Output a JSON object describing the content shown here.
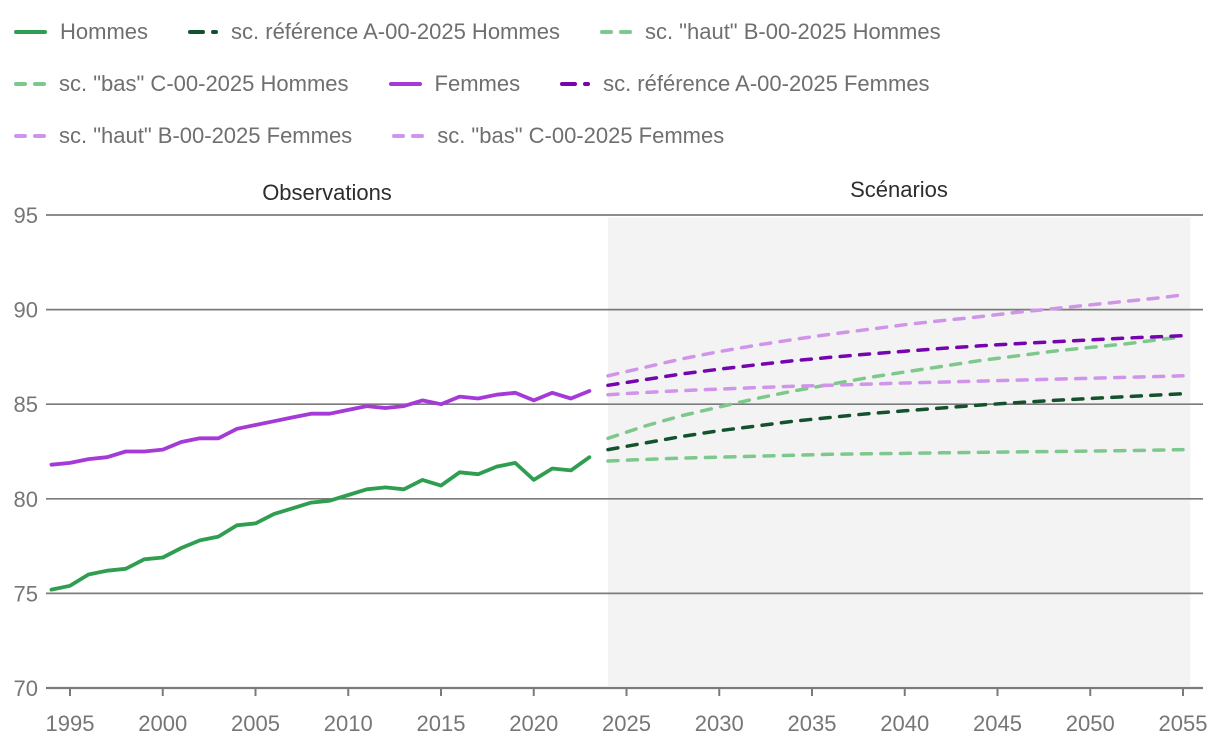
{
  "section_labels": {
    "observations": "Observations",
    "scenarios": "Scénarios"
  },
  "colors": {
    "hommes": "#2f9e50",
    "hommes_ref": "#14522e",
    "hommes_light": "#7ec88d",
    "femmes": "#a53ad6",
    "femmes_ref": "#7505ae",
    "femmes_light": "#d095ea",
    "grid": "#7b7b7b",
    "tick_text": "#767676",
    "legend_text": "#6f6f6f",
    "section_text": "#2d2d2d",
    "shade": "#f3f3f3",
    "background": "#ffffff"
  },
  "chart_data": {
    "type": "line",
    "title": "",
    "xlabel": "",
    "ylabel": "",
    "ylim": [
      70,
      95
    ],
    "xlim": [
      1994,
      2055.4
    ],
    "y_ticks": [
      70,
      75,
      80,
      85,
      90,
      95
    ],
    "x_ticks": [
      1995,
      2000,
      2005,
      2010,
      2015,
      2020,
      2025,
      2030,
      2035,
      2040,
      2045,
      2050,
      2055
    ],
    "grid": "horizontal",
    "legend_position": "top",
    "shaded_region": {
      "from": 2024,
      "to": 2055.4,
      "label": "Scénarios",
      "color_key": "shade"
    },
    "observation_region": {
      "from": 1994,
      "to": 2024,
      "label": "Observations"
    },
    "series": [
      {
        "name": "hommes",
        "legend_label": "Hommes",
        "color_key": "hommes",
        "line_style": "solid",
        "swatch": "solid",
        "legend_row": 0,
        "x": [
          1994,
          1995,
          1996,
          1997,
          1998,
          1999,
          2000,
          2001,
          2002,
          2003,
          2004,
          2005,
          2006,
          2007,
          2008,
          2009,
          2010,
          2011,
          2012,
          2013,
          2014,
          2015,
          2016,
          2017,
          2018,
          2019,
          2020,
          2021,
          2022,
          2023
        ],
        "values": [
          75.2,
          75.4,
          76.0,
          76.2,
          76.3,
          76.8,
          76.9,
          77.4,
          77.8,
          78.0,
          78.6,
          78.7,
          79.2,
          79.5,
          79.8,
          79.9,
          80.2,
          80.5,
          80.6,
          80.5,
          81.0,
          80.7,
          81.4,
          81.3,
          81.7,
          81.9,
          81.0,
          81.6,
          81.5,
          82.2
        ]
      },
      {
        "name": "sc-reference-hommes",
        "legend_label": "sc. référence A-00-2025 Hommes",
        "color_key": "hommes_ref",
        "line_style": "dashed",
        "swatch": "dash-long-short",
        "legend_row": 0,
        "x": [
          2024,
          2026,
          2028,
          2030,
          2032,
          2034,
          2036,
          2038,
          2040,
          2042,
          2044,
          2046,
          2048,
          2050,
          2052,
          2054,
          2055
        ],
        "values": [
          82.6,
          82.95,
          83.3,
          83.6,
          83.85,
          84.1,
          84.3,
          84.5,
          84.65,
          84.8,
          84.95,
          85.08,
          85.2,
          85.3,
          85.4,
          85.5,
          85.55
        ]
      },
      {
        "name": "sc-haut-hommes",
        "legend_label": "sc. \"haut\" B-00-2025 Hommes",
        "color_key": "hommes_light",
        "line_style": "dashed",
        "swatch": "dash-even",
        "legend_row": 0,
        "x": [
          2024,
          2026,
          2028,
          2030,
          2032,
          2034,
          2036,
          2038,
          2040,
          2042,
          2044,
          2046,
          2048,
          2050,
          2052,
          2054,
          2055
        ],
        "values": [
          83.2,
          83.85,
          84.4,
          84.85,
          85.3,
          85.7,
          86.05,
          86.4,
          86.7,
          87.0,
          87.3,
          87.55,
          87.8,
          88.0,
          88.2,
          88.45,
          88.55
        ]
      },
      {
        "name": "sc-bas-hommes",
        "legend_label": "sc. \"bas\" C-00-2025 Hommes",
        "color_key": "hommes_light",
        "line_style": "dashed",
        "swatch": "dash-even",
        "legend_row": 1,
        "x": [
          2024,
          2026,
          2028,
          2030,
          2032,
          2034,
          2036,
          2038,
          2040,
          2042,
          2044,
          2046,
          2048,
          2050,
          2052,
          2054,
          2055
        ],
        "values": [
          82.0,
          82.08,
          82.15,
          82.2,
          82.25,
          82.3,
          82.35,
          82.38,
          82.4,
          82.43,
          82.45,
          82.48,
          82.5,
          82.52,
          82.55,
          82.58,
          82.6
        ]
      },
      {
        "name": "femmes",
        "legend_label": "Femmes",
        "color_key": "femmes",
        "line_style": "solid",
        "swatch": "solid",
        "legend_row": 1,
        "x": [
          1994,
          1995,
          1996,
          1997,
          1998,
          1999,
          2000,
          2001,
          2002,
          2003,
          2004,
          2005,
          2006,
          2007,
          2008,
          2009,
          2010,
          2011,
          2012,
          2013,
          2014,
          2015,
          2016,
          2017,
          2018,
          2019,
          2020,
          2021,
          2022,
          2023
        ],
        "values": [
          81.8,
          81.9,
          82.1,
          82.2,
          82.5,
          82.5,
          82.6,
          83.0,
          83.2,
          83.2,
          83.7,
          83.9,
          84.1,
          84.3,
          84.5,
          84.5,
          84.7,
          84.9,
          84.8,
          84.9,
          85.2,
          85.0,
          85.4,
          85.3,
          85.5,
          85.6,
          85.2,
          85.6,
          85.3,
          85.7
        ]
      },
      {
        "name": "sc-reference-femmes",
        "legend_label": "sc. référence A-00-2025 Femmes",
        "color_key": "femmes_ref",
        "line_style": "dashed",
        "swatch": "dash-long-short",
        "legend_row": 1,
        "x": [
          2024,
          2026,
          2028,
          2030,
          2032,
          2034,
          2036,
          2038,
          2040,
          2042,
          2044,
          2046,
          2048,
          2050,
          2052,
          2054,
          2055
        ],
        "values": [
          86.0,
          86.3,
          86.6,
          86.85,
          87.08,
          87.3,
          87.48,
          87.65,
          87.8,
          87.95,
          88.08,
          88.2,
          88.3,
          88.4,
          88.5,
          88.58,
          88.62
        ]
      },
      {
        "name": "sc-haut-femmes",
        "legend_label": "sc. \"haut\" B-00-2025 Femmes",
        "color_key": "femmes_light",
        "line_style": "dashed",
        "swatch": "dash-even",
        "legend_row": 2,
        "x": [
          2024,
          2026,
          2028,
          2030,
          2032,
          2034,
          2036,
          2038,
          2040,
          2042,
          2044,
          2046,
          2048,
          2050,
          2052,
          2054,
          2055
        ],
        "values": [
          86.5,
          86.95,
          87.4,
          87.78,
          88.12,
          88.42,
          88.7,
          88.95,
          89.2,
          89.42,
          89.62,
          89.85,
          90.05,
          90.25,
          90.45,
          90.65,
          90.78
        ]
      },
      {
        "name": "sc-bas-femmes",
        "legend_label": "sc. \"bas\" C-00-2025 Femmes",
        "color_key": "femmes_light",
        "line_style": "dashed",
        "swatch": "dash-even",
        "legend_row": 2,
        "x": [
          2024,
          2026,
          2028,
          2030,
          2032,
          2034,
          2036,
          2038,
          2040,
          2042,
          2044,
          2046,
          2048,
          2050,
          2052,
          2054,
          2055
        ],
        "values": [
          85.5,
          85.62,
          85.72,
          85.8,
          85.88,
          85.95,
          86.0,
          86.06,
          86.12,
          86.17,
          86.22,
          86.27,
          86.32,
          86.37,
          86.42,
          86.47,
          86.5
        ]
      }
    ]
  }
}
